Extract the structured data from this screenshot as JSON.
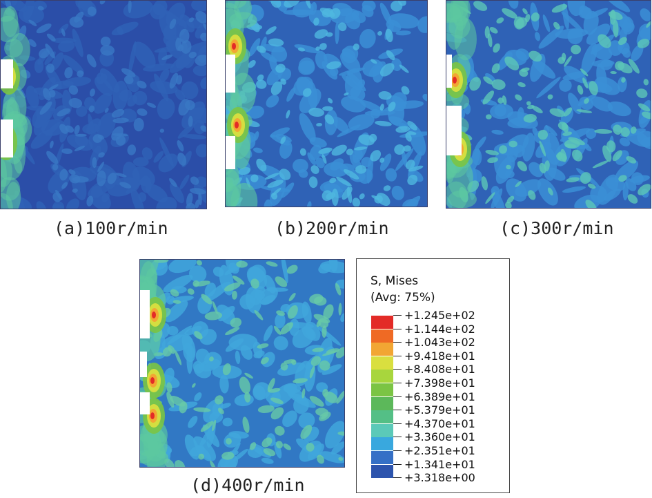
{
  "panels": [
    {
      "caption": "(a)100r/min",
      "palette": [
        "#2b4ea8",
        "#2f62b6",
        "#3a78c4"
      ],
      "hot_intensity": 1.0
    },
    {
      "caption": "(b)200r/min",
      "palette": [
        "#2f62b6",
        "#3b8fd6",
        "#4fb8e0"
      ],
      "hot_intensity": 1.1
    },
    {
      "caption": "(c)300r/min",
      "palette": [
        "#2f62b6",
        "#3b8fd6",
        "#5cc7b8"
      ],
      "hot_intensity": 1.0
    },
    {
      "caption": "(d)400r/min",
      "palette": [
        "#3178c4",
        "#41a6dc",
        "#68c9a8"
      ],
      "hot_intensity": 1.2
    }
  ],
  "legend": {
    "title_line1": "S, Mises",
    "title_line2": "(Avg: 75%)",
    "labels": [
      "+1.245e+02",
      "+1.144e+02",
      "+1.043e+02",
      "+9.418e+01",
      "+8.408e+01",
      "+7.398e+01",
      "+6.389e+01",
      "+5.379e+01",
      "+4.370e+01",
      "+3.360e+01",
      "+2.351e+01",
      "+1.341e+01",
      "+3.318e+00"
    ],
    "colors": [
      "#e32b27",
      "#ef6a24",
      "#f2a633",
      "#d9df3f",
      "#a8d63d",
      "#7bc444",
      "#5cb85a",
      "#54bf86",
      "#5bc9b8",
      "#39a8de",
      "#3570c6",
      "#2d54ad"
    ]
  }
}
